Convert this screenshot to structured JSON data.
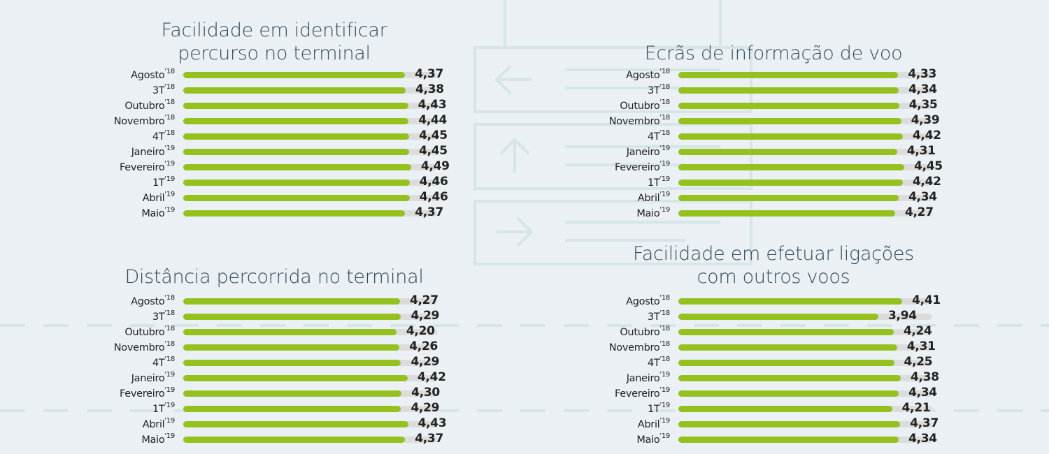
{
  "chart_data": [
    {
      "type": "bar",
      "orientation": "horizontal",
      "title": "Facilidade em identificar percurso no terminal",
      "title_lines": [
        "Facilidade em identificar",
        "percurso no terminal"
      ],
      "categories": [
        [
          "Agosto",
          "'18"
        ],
        [
          "3T",
          "'18"
        ],
        [
          "Outubro",
          "'18"
        ],
        [
          "Novembro",
          "'18"
        ],
        [
          "4T",
          "'18"
        ],
        [
          "Janeiro",
          "'19"
        ],
        [
          "Fevereiro",
          "'19"
        ],
        [
          "1T",
          "'19"
        ],
        [
          "Abril",
          "'19"
        ],
        [
          "Maio",
          "'19"
        ]
      ],
      "values": [
        4.37,
        4.38,
        4.43,
        4.44,
        4.45,
        4.45,
        4.49,
        4.46,
        4.46,
        4.37
      ],
      "value_labels": [
        "4,37",
        "4,38",
        "4,43",
        "4,44",
        "4,45",
        "4,45",
        "4,49",
        "4,46",
        "4,46",
        "4,37"
      ],
      "xlim": [
        0,
        5
      ]
    },
    {
      "type": "bar",
      "orientation": "horizontal",
      "title": "Ecrãs de informação de voo",
      "title_lines": [
        "Ecrãs de informação de voo"
      ],
      "categories": [
        [
          "Agosto",
          "'18"
        ],
        [
          "3T",
          "'18"
        ],
        [
          "Outubro",
          "'18"
        ],
        [
          "Novembro",
          "'18"
        ],
        [
          "4T",
          "'18"
        ],
        [
          "Janeiro",
          "'19"
        ],
        [
          "Fevereiro",
          "'19"
        ],
        [
          "1T",
          "'19"
        ],
        [
          "Abril",
          "'19"
        ],
        [
          "Maio",
          "'19"
        ]
      ],
      "values": [
        4.33,
        4.34,
        4.35,
        4.39,
        4.42,
        4.31,
        4.45,
        4.42,
        4.34,
        4.27
      ],
      "value_labels": [
        "4,33",
        "4,34",
        "4,35",
        "4,39",
        "4,42",
        "4,31",
        "4,45",
        "4,42",
        "4,34",
        "4,27"
      ],
      "xlim": [
        0,
        5
      ]
    },
    {
      "type": "bar",
      "orientation": "horizontal",
      "title": "Distância percorrida no terminal",
      "title_lines": [
        "Distância percorrida no terminal"
      ],
      "categories": [
        [
          "Agosto",
          "'18"
        ],
        [
          "3T",
          "'18"
        ],
        [
          "Outubro",
          "'18"
        ],
        [
          "Novembro",
          "'18"
        ],
        [
          "4T",
          "'18"
        ],
        [
          "Janeiro",
          "'19"
        ],
        [
          "Fevereiro",
          "'19"
        ],
        [
          "1T",
          "'19"
        ],
        [
          "Abril",
          "'19"
        ],
        [
          "Maio",
          "'19"
        ]
      ],
      "values": [
        4.27,
        4.29,
        4.2,
        4.26,
        4.29,
        4.42,
        4.3,
        4.29,
        4.43,
        4.37
      ],
      "value_labels": [
        "4,27",
        "4,29",
        "4,20",
        "4,26",
        "4,29",
        "4,42",
        "4,30",
        "4,29",
        "4,43",
        "4,37"
      ],
      "xlim": [
        0,
        5
      ]
    },
    {
      "type": "bar",
      "orientation": "horizontal",
      "title": "Facilidade em efetuar ligações com outros voos",
      "title_lines": [
        "Facilidade em efetuar ligações",
        "com outros voos"
      ],
      "categories": [
        [
          "Agosto",
          "'18"
        ],
        [
          "3T",
          "'18"
        ],
        [
          "Outubro",
          "'18"
        ],
        [
          "Novembro",
          "'18"
        ],
        [
          "4T",
          "'18"
        ],
        [
          "Janeiro",
          "'19"
        ],
        [
          "Fevereiro",
          "'19"
        ],
        [
          "1T",
          "'19"
        ],
        [
          "Abril",
          "'19"
        ],
        [
          "Maio",
          "'19"
        ]
      ],
      "values": [
        4.41,
        3.94,
        4.24,
        4.31,
        4.25,
        4.38,
        4.34,
        4.21,
        4.37,
        4.34
      ],
      "value_labels": [
        "4,41",
        "3,94",
        "4,24",
        "4,31",
        "4,25",
        "4,38",
        "4,34",
        "4,21",
        "4,37",
        "4,34"
      ],
      "xlim": [
        0,
        5
      ]
    }
  ],
  "colors": {
    "bar": "#95c11f",
    "track": "#dcdcdc",
    "background": "#eaf0f3",
    "title": "#34495a"
  }
}
